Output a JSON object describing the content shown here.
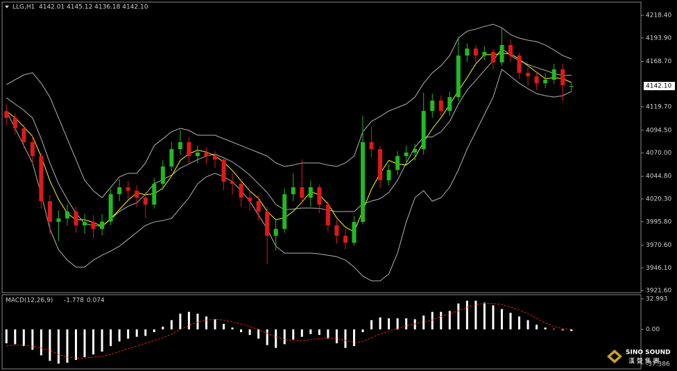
{
  "chart_data": [
    {
      "type": "candlestick",
      "title": "LLG,H1",
      "header": "4142.01 4145.12 4136.18 4142.10",
      "ylim": [
        3919.4,
        4232.6
      ],
      "yticks": [
        {
          "value": 4218.4,
          "label": "4218.40"
        },
        {
          "value": 4193.9,
          "label": "4193.90"
        },
        {
          "value": 4168.7,
          "label": "4168.70"
        },
        {
          "value": 4119.7,
          "label": "4119.70"
        },
        {
          "value": 4094.5,
          "label": "4094.50"
        },
        {
          "value": 4070.0,
          "label": "4070.00"
        },
        {
          "value": 4044.8,
          "label": "4044.80"
        },
        {
          "value": 4020.3,
          "label": "4020.30"
        },
        {
          "value": 3995.8,
          "label": "3995.80"
        },
        {
          "value": 3970.6,
          "label": "3970.60"
        },
        {
          "value": 3946.1,
          "label": "3946.10"
        },
        {
          "value": 3921.6,
          "label": "3921.60"
        }
      ],
      "last_price": {
        "value": 4142.1,
        "label": "4142.10"
      },
      "up_color": "#22b922",
      "down_color": "#e01818",
      "open": [
        4115.0,
        4107.8,
        4096.5,
        4081.6,
        4066.6,
        4018.0,
        3995.6,
        3999.4,
        4006.8,
        3991.9,
        3995.6,
        3988.1,
        3996.0,
        4025.5,
        4033.0,
        4029.3,
        4021.8,
        4014.3,
        4036.7,
        4055.4,
        4074.1,
        4081.6,
        4066.6,
        4070.4,
        4066.6,
        4062.9,
        4039.0,
        4036.7,
        4021.8,
        4018.0,
        4006.8,
        3980.7,
        3988.1,
        4025.5,
        4033.0,
        4021.8,
        4033.0,
        4014.3,
        3991.9,
        3980.7,
        3973.2,
        3995.6,
        4081.6,
        4074.1,
        4040.5,
        4051.7,
        4066.6,
        4070.4,
        4074.1,
        4115.3,
        4126.4,
        4115.3,
        4130.2,
        4175.0,
        4182.5,
        4175.0,
        4178.8,
        4167.6,
        4186.3,
        4175.0,
        4156.3,
        4152.6,
        4145.1,
        4148.9,
        4160.1,
        4142.01
      ],
      "high": [
        4122,
        4113,
        4101,
        4088,
        4070,
        4025,
        4008,
        4015,
        4012,
        4004,
        4003,
        4004,
        4031,
        4042,
        4040,
        4035,
        4028,
        4043,
        4062,
        4082,
        4095,
        4087,
        4078,
        4076,
        4072,
        4066,
        4048,
        4042,
        4030,
        4024,
        4012,
        3998,
        4032,
        4048,
        4063,
        4040,
        4036,
        4018,
        3998,
        3988,
        4002,
        4110,
        4098,
        4078,
        4058,
        4072,
        4078,
        4080,
        4135,
        4134,
        4132,
        4136,
        4195,
        4188,
        4186,
        4185,
        4182,
        4204,
        4192,
        4178,
        4162,
        4158,
        4156,
        4166,
        4166,
        4145.12
      ],
      "low": [
        4100,
        4090,
        4075,
        4058,
        4010,
        3982,
        3975,
        3992,
        3984,
        3983,
        3978,
        3981,
        3992,
        4018,
        4020,
        4012,
        4000,
        4010,
        4030,
        4050,
        4068,
        4058,
        4059,
        4058,
        4054,
        4030,
        4025,
        4012,
        4008,
        3997,
        3950,
        3965,
        3984,
        4018,
        4015,
        4012,
        4005,
        3985,
        3972,
        3966,
        3970,
        3993,
        4065,
        4032,
        4035,
        4046,
        4060,
        4062,
        4068,
        4108,
        4110,
        4110,
        4126,
        4168,
        4168,
        4170,
        4160,
        4164,
        4168,
        4150,
        4142,
        4138,
        4140,
        4144,
        4126,
        4136.18
      ],
      "close": [
        4107.8,
        4096.5,
        4081.6,
        4066.6,
        4018.0,
        3995.6,
        3999.4,
        4006.8,
        3991.9,
        3995.6,
        3988.1,
        3996.0,
        4025.5,
        4033.0,
        4029.3,
        4021.8,
        4014.3,
        4036.7,
        4055.4,
        4074.1,
        4081.6,
        4066.6,
        4070.4,
        4066.6,
        4062.9,
        4039.0,
        4036.7,
        4021.8,
        4018.0,
        4006.8,
        3980.7,
        3988.1,
        4025.5,
        4033.0,
        4021.8,
        4033.0,
        4014.3,
        3991.9,
        3980.7,
        3973.2,
        3995.6,
        4081.6,
        4074.1,
        4040.5,
        4051.7,
        4066.6,
        4070.4,
        4074.1,
        4115.3,
        4126.4,
        4115.3,
        4130.2,
        4175.0,
        4182.5,
        4175.0,
        4178.8,
        4167.6,
        4186.3,
        4175.0,
        4156.3,
        4152.6,
        4145.1,
        4148.9,
        4160.1,
        4143.0,
        4142.1
      ],
      "overlays": [
        {
          "color": "#b4b4b4",
          "values": [
            4143.6,
            4148.9,
            4154.1,
            4156.4,
            4145.1,
            4130.2,
            4107.8,
            4085.3,
            4062.9,
            4040.5,
            4029.3,
            4021.8,
            4033.0,
            4044.2,
            4048.0,
            4048.0,
            4059.2,
            4077.9,
            4085.3,
            4092.8,
            4096.5,
            4094.3,
            4089.1,
            4089.1,
            4089.1,
            4085.3,
            4081.6,
            4077.9,
            4074.1,
            4070.4,
            4066.6,
            4059.2,
            4055.4,
            4056.9,
            4059.2,
            4059.2,
            4059.2,
            4056.9,
            4055.4,
            4059.2,
            4066.6,
            4092.8,
            4104.0,
            4109.3,
            4115.2,
            4119.0,
            4122.7,
            4130.2,
            4145.1,
            4156.4,
            4163.8,
            4175.0,
            4193.7,
            4201.2,
            4203.5,
            4206.4,
            4208.7,
            4204.9,
            4197.5,
            4193.7,
            4191.5,
            4190.0,
            4186.3,
            4181.0,
            4175.0,
            4171.3
          ]
        },
        {
          "color": "#b4b4b4",
          "values": [
            4129.4,
            4122.7,
            4116.0,
            4107.8,
            4085.3,
            4059.2,
            4036.8,
            4019.9,
            4005.0,
            3993.8,
            3991.9,
            3990.8,
            3998.6,
            4006.9,
            4012.5,
            4016.2,
            4025.6,
            4036.8,
            4041.2,
            4046.1,
            4053.6,
            4058.1,
            4062.9,
            4066.7,
            4068.6,
            4064.8,
            4060.3,
            4053.6,
            4046.1,
            4036.8,
            4027.4,
            4014.4,
            4008.7,
            4009.5,
            4010.6,
            4010.6,
            4010.2,
            4008.3,
            4006.8,
            4006.9,
            4006.8,
            4015.1,
            4018.1,
            4020.7,
            4027.4,
            4040.5,
            4059.2,
            4076.0,
            4087.2,
            4087.2,
            4092.8,
            4104.0,
            4122.7,
            4137.7,
            4148.2,
            4159.0,
            4169.5,
            4182.5,
            4175.1,
            4169.4,
            4165.4,
            4162.0,
            4159.0,
            4155.6,
            4153.4,
            4153.8
          ]
        },
        {
          "color": "#b4b4b4",
          "values": [
            4115.2,
            4096.5,
            4077.9,
            4059.2,
            4025.5,
            3988.1,
            3965.7,
            3954.5,
            3947.0,
            3947.0,
            3954.5,
            3959.7,
            3964.2,
            3969.5,
            3976.9,
            3984.4,
            3991.9,
            3995.6,
            3997.1,
            3999.4,
            4010.6,
            4021.8,
            4036.7,
            4044.2,
            4048.0,
            4044.2,
            4039.0,
            4029.3,
            4018.0,
            4003.1,
            3988.1,
            3969.5,
            3962.0,
            3962.0,
            3962.0,
            3962.0,
            3961.2,
            3959.7,
            3958.2,
            3954.5,
            3947.0,
            3937.3,
            3932.1,
            3932.1,
            3939.6,
            3962.0,
            3995.6,
            4021.8,
            4029.3,
            4018.0,
            4021.8,
            4033.0,
            4051.7,
            4074.1,
            4092.8,
            4111.5,
            4130.2,
            4160.1,
            4152.6,
            4145.1,
            4139.2,
            4133.9,
            4131.7,
            4130.2,
            4131.7,
            4136.2
          ]
        },
        {
          "color": "#ffff00",
          "values": [
            4115,
            4108,
            4098,
            4088,
            4066,
            4040,
            4020,
            4005,
            3998,
            3998,
            3995,
            3991,
            3999,
            4009,
            4019,
            4027,
            4025,
            4026,
            4032,
            4045,
            4062,
            4069,
            4073,
            4071,
            4067,
            4060,
            4051,
            4040,
            4029,
            4021,
            4007,
            3998,
            4000,
            4007,
            4017,
            4028,
            4025,
            4015,
            4000,
            3990,
            3985,
            4008,
            4031,
            4048,
            4062,
            4058,
            4057,
            4065,
            4082,
            4096,
            4108,
            4122,
            4137,
            4151,
            4166,
            4176,
            4176,
            4177,
            4177,
            4171,
            4164,
            4157,
            4150,
            4151,
            4150,
            4146
          ]
        }
      ]
    },
    {
      "type": "macd",
      "title": "MACD(12,26,9)",
      "ylim": [
        -42.7,
        37.5
      ],
      "yticks": [
        32.993,
        {
          "value": 0,
          "label": "0.00"
        },
        -37.386
      ],
      "series": [
        {
          "color": "#ffffff",
          "values": [
            -15,
            -16,
            -18,
            -22,
            -28,
            -34,
            -37,
            -36,
            -33,
            -30,
            -27,
            -24,
            -18,
            -13,
            -10,
            -8,
            -7,
            -3,
            3,
            10,
            17,
            19,
            17,
            14,
            11,
            6,
            2,
            -3,
            -6,
            -10,
            -17,
            -20,
            -16,
            -11,
            -8,
            -5,
            -6,
            -10,
            -15,
            -20,
            -18,
            -3,
            10,
            13,
            12,
            12,
            12,
            11,
            15,
            19,
            19,
            20,
            28,
            31,
            31,
            29,
            26,
            22,
            18,
            14,
            10,
            5,
            2,
            0.5,
            -1,
            -1.778
          ]
        },
        {
          "color": "#e02020",
          "values": [
            -18,
            -17,
            -17,
            -18,
            -20,
            -23,
            -27,
            -30,
            -31,
            -31,
            -30,
            -29,
            -27,
            -24,
            -21,
            -18,
            -15,
            -12,
            -9,
            -5,
            0,
            4,
            8,
            10,
            11,
            10,
            8,
            6,
            3,
            0,
            -4,
            -8,
            -11,
            -12,
            -12,
            -11,
            -10,
            -9,
            -10,
            -12,
            -14,
            -13,
            -9,
            -5,
            -2,
            1,
            4,
            6,
            8,
            10,
            14,
            17,
            20,
            24,
            27,
            28,
            28,
            27,
            24,
            21,
            17,
            12,
            7,
            3,
            1,
            0.074
          ]
        }
      ]
    }
  ],
  "watermark": {
    "name": "SINO SOUND",
    "subtitle": "漢 聲 集 團"
  }
}
